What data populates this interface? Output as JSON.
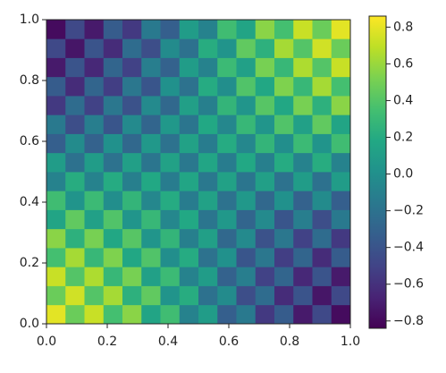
{
  "chart_data": {
    "type": "heatmap",
    "xlim": [
      0,
      1
    ],
    "ylim": [
      0,
      1
    ],
    "xticks": [
      {
        "value": 0,
        "label": "0.0"
      },
      0.2,
      0.4,
      0.6,
      0.8,
      {
        "value": 1,
        "label": "1.0"
      }
    ],
    "yticks": [
      {
        "value": 0,
        "label": "0.0"
      },
      0.2,
      0.4,
      0.6,
      0.8,
      {
        "value": 1,
        "label": "1.0"
      }
    ],
    "colormap": "viridis",
    "clim": [
      -0.84,
      0.86
    ],
    "colorbar_ticks": [
      {
        "value": -0.8,
        "label": "−0.8"
      },
      {
        "value": -0.6,
        "label": "−0.6"
      },
      {
        "value": -0.4,
        "label": "−0.4"
      },
      {
        "value": -0.2,
        "label": "−0.2"
      },
      {
        "value": 0,
        "label": "0.0"
      },
      0.2,
      0.4,
      0.6,
      0.8
    ],
    "z": [
      [
        0.79,
        0.47,
        0.72,
        0.35,
        0.56,
        0.15,
        0.33,
        -0.09,
        0.09,
        -0.33,
        -0.15,
        -0.56,
        -0.35,
        -0.72,
        -0.47,
        -0.79
      ],
      [
        0.47,
        0.74,
        0.4,
        0.63,
        0.24,
        0.44,
        0.03,
        0.21,
        -0.21,
        -0.03,
        -0.44,
        -0.24,
        -0.63,
        -0.4,
        -0.74,
        -0.47
      ],
      [
        0.72,
        0.4,
        0.65,
        0.29,
        0.51,
        0.12,
        0.31,
        -0.09,
        0.09,
        -0.31,
        -0.12,
        -0.51,
        -0.29,
        -0.65,
        -0.4,
        -0.72
      ],
      [
        0.35,
        0.63,
        0.29,
        0.53,
        0.17,
        0.39,
        -0.01,
        0.2,
        -0.2,
        0.01,
        -0.39,
        -0.17,
        -0.53,
        -0.29,
        -0.63,
        -0.35
      ],
      [
        0.56,
        0.24,
        0.51,
        0.17,
        0.41,
        0.04,
        0.27,
        -0.11,
        0.11,
        -0.27,
        -0.04,
        -0.41,
        -0.17,
        -0.51,
        -0.24,
        -0.56
      ],
      [
        0.15,
        0.44,
        0.12,
        0.39,
        0.04,
        0.29,
        -0.06,
        0.18,
        -0.18,
        0.06,
        -0.29,
        -0.04,
        -0.39,
        -0.12,
        -0.44,
        -0.15
      ],
      [
        0.33,
        0.03,
        0.31,
        -0.01,
        0.27,
        -0.06,
        0.2,
        -0.13,
        0.13,
        -0.2,
        0.06,
        -0.27,
        0.01,
        -0.31,
        -0.03,
        -0.33
      ],
      [
        -0.09,
        0.21,
        -0.09,
        0.2,
        -0.11,
        0.18,
        -0.13,
        0.16,
        -0.16,
        0.13,
        -0.18,
        0.11,
        -0.2,
        0.09,
        -0.21,
        0.09
      ],
      [
        0.09,
        -0.21,
        0.09,
        -0.2,
        0.11,
        -0.18,
        0.13,
        -0.16,
        0.16,
        -0.13,
        0.18,
        -0.11,
        0.2,
        -0.09,
        0.21,
        -0.09
      ],
      [
        -0.33,
        -0.03,
        -0.31,
        0.01,
        -0.27,
        0.06,
        -0.2,
        0.13,
        -0.13,
        0.2,
        -0.06,
        0.27,
        -0.01,
        0.31,
        0.03,
        0.33
      ],
      [
        -0.15,
        -0.44,
        -0.12,
        -0.39,
        -0.04,
        -0.29,
        0.06,
        -0.18,
        0.18,
        -0.06,
        0.29,
        0.04,
        0.39,
        0.12,
        0.44,
        0.15
      ],
      [
        -0.56,
        -0.24,
        -0.51,
        -0.17,
        -0.41,
        -0.04,
        -0.27,
        0.11,
        -0.11,
        0.27,
        0.04,
        0.41,
        0.17,
        0.51,
        0.24,
        0.56
      ],
      [
        -0.35,
        -0.63,
        -0.29,
        -0.53,
        -0.17,
        -0.39,
        0.01,
        -0.2,
        0.2,
        -0.01,
        0.39,
        0.17,
        0.53,
        0.29,
        0.63,
        0.35
      ],
      [
        -0.72,
        -0.4,
        -0.65,
        -0.29,
        -0.51,
        -0.12,
        -0.31,
        0.09,
        -0.09,
        0.31,
        0.12,
        0.51,
        0.29,
        0.65,
        0.4,
        0.72
      ],
      [
        -0.47,
        -0.74,
        -0.4,
        -0.63,
        -0.24,
        -0.44,
        -0.03,
        -0.21,
        0.21,
        0.03,
        0.44,
        0.24,
        0.63,
        0.4,
        0.74,
        0.47
      ],
      [
        -0.79,
        -0.47,
        -0.72,
        -0.35,
        -0.56,
        -0.15,
        -0.33,
        0.09,
        -0.09,
        0.33,
        0.15,
        0.56,
        0.35,
        0.72,
        0.47,
        0.79
      ]
    ]
  }
}
